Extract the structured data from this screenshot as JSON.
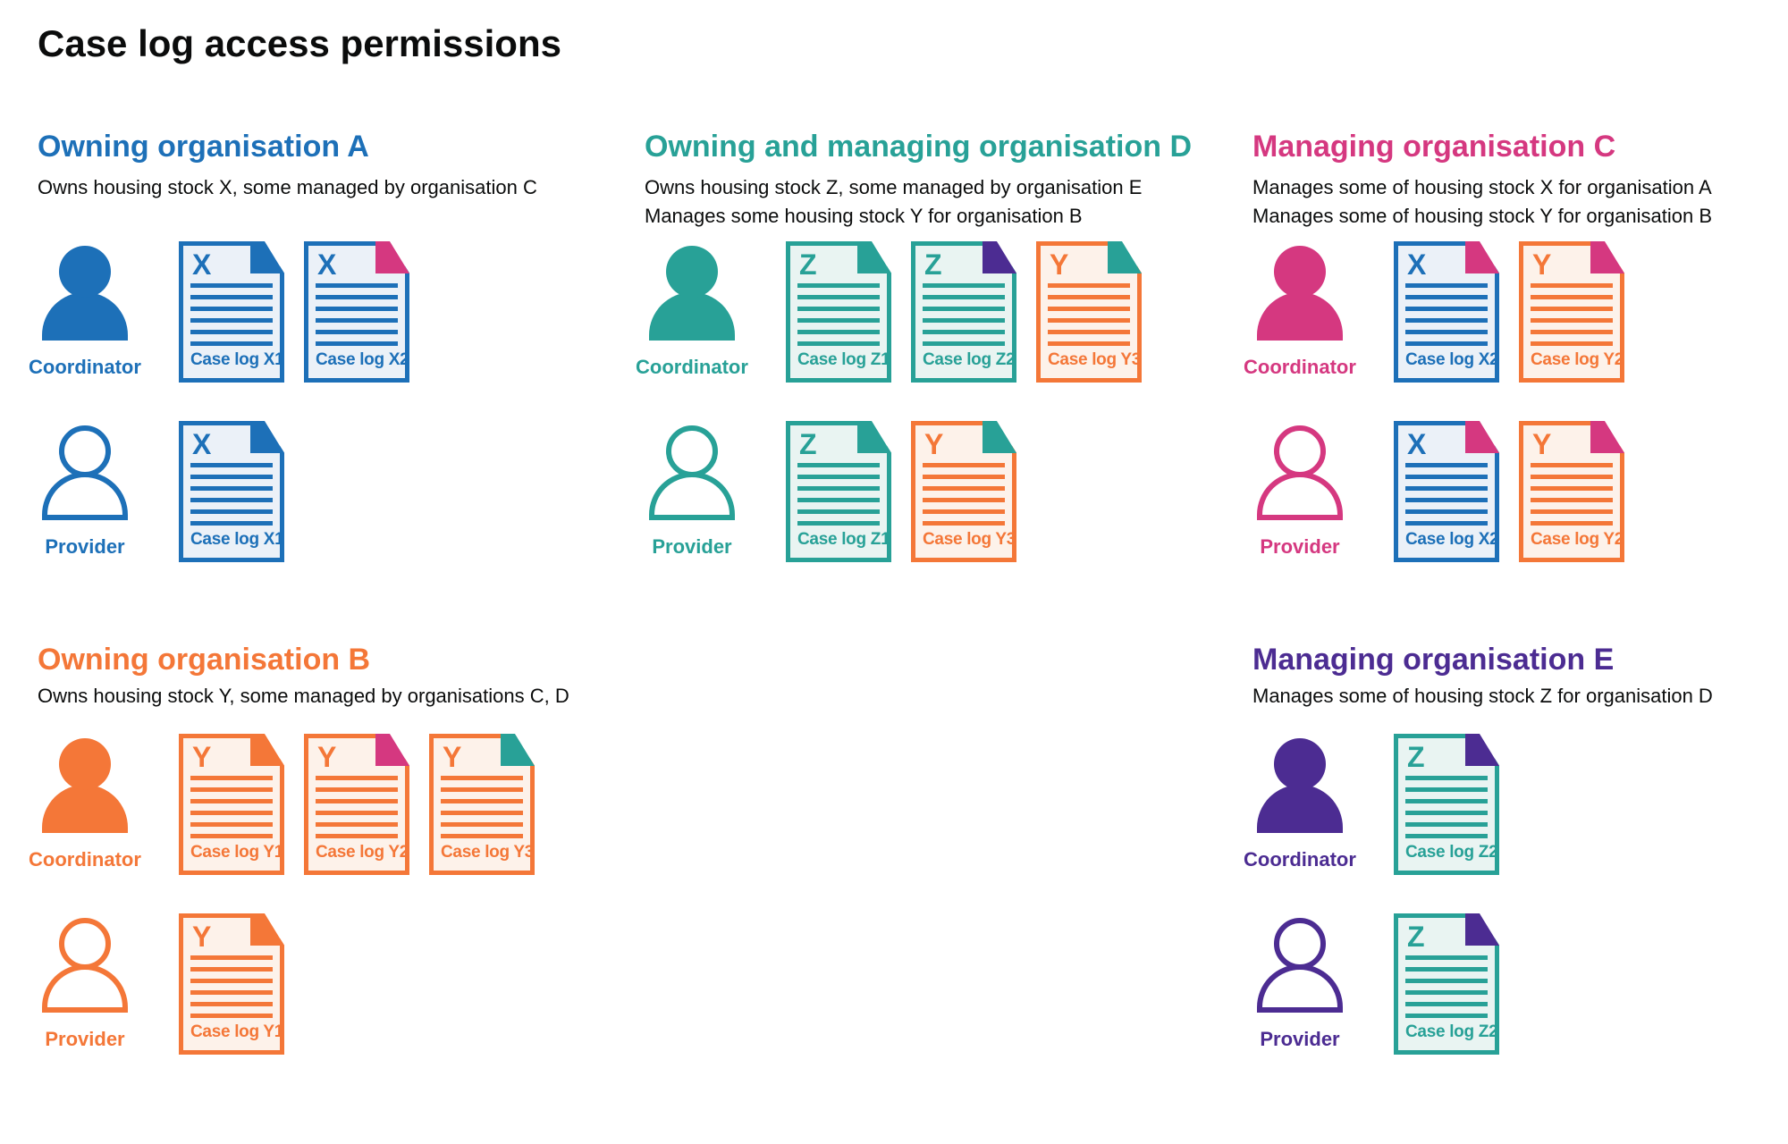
{
  "title": "Case log access permissions",
  "colors": {
    "text": "#0b0c0c",
    "blue": {
      "main": "#1d70b8",
      "light": "#ebf1f8"
    },
    "teal": {
      "main": "#28a197",
      "light": "#e9f4f2"
    },
    "orange": {
      "main": "#f47738",
      "light": "#fdf2ea"
    },
    "pink": {
      "main": "#d53880",
      "light": "#fbeaf2"
    },
    "purple": {
      "main": "#4c2c92",
      "light": "#ece8f4"
    }
  },
  "sections": [
    {
      "slot": "a",
      "row": 1,
      "color": "blue",
      "title": "Owning organisation A",
      "description_lines": [
        "Owns housing stock X, some managed by organisation C"
      ],
      "roles": [
        {
          "label": "Coordinator",
          "style": "filled",
          "documents": [
            {
              "letter": "X",
              "label": "Case log X1",
              "doc_color": "blue",
              "corner_color": "blue"
            },
            {
              "letter": "X",
              "label": "Case log X2",
              "doc_color": "blue",
              "corner_color": "pink"
            }
          ]
        },
        {
          "label": "Provider",
          "style": "outline",
          "documents": [
            {
              "letter": "X",
              "label": "Case log X1",
              "doc_color": "blue",
              "corner_color": "blue"
            }
          ]
        }
      ]
    },
    {
      "slot": "d",
      "row": 1,
      "color": "teal",
      "title": "Owning and managing organisation D",
      "description_lines": [
        "Owns housing stock Z, some managed by organisation E",
        "Manages some housing stock Y for organisation B"
      ],
      "roles": [
        {
          "label": "Coordinator",
          "style": "filled",
          "documents": [
            {
              "letter": "Z",
              "label": "Case log Z1",
              "doc_color": "teal",
              "corner_color": "teal"
            },
            {
              "letter": "Z",
              "label": "Case log Z2",
              "doc_color": "teal",
              "corner_color": "purple"
            },
            {
              "letter": "Y",
              "label": "Case log Y3",
              "doc_color": "orange",
              "corner_color": "teal"
            }
          ]
        },
        {
          "label": "Provider",
          "style": "outline",
          "documents": [
            {
              "letter": "Z",
              "label": "Case log Z1",
              "doc_color": "teal",
              "corner_color": "teal"
            },
            {
              "letter": "Y",
              "label": "Case log Y3",
              "doc_color": "orange",
              "corner_color": "teal"
            }
          ]
        }
      ]
    },
    {
      "slot": "c",
      "row": 1,
      "color": "pink",
      "title": "Managing organisation C",
      "description_lines": [
        "Manages some of housing stock X for organisation A",
        "Manages some of housing stock Y for organisation B"
      ],
      "roles": [
        {
          "label": "Coordinator",
          "style": "filled",
          "documents": [
            {
              "letter": "X",
              "label": "Case log X2",
              "doc_color": "blue",
              "corner_color": "pink"
            },
            {
              "letter": "Y",
              "label": "Case log Y2",
              "doc_color": "orange",
              "corner_color": "pink"
            }
          ]
        },
        {
          "label": "Provider",
          "style": "outline",
          "documents": [
            {
              "letter": "X",
              "label": "Case log X2",
              "doc_color": "blue",
              "corner_color": "pink"
            },
            {
              "letter": "Y",
              "label": "Case log Y2",
              "doc_color": "orange",
              "corner_color": "pink"
            }
          ]
        }
      ]
    },
    {
      "slot": "b",
      "row": 2,
      "color": "orange",
      "title": "Owning organisation B",
      "description_lines": [
        "Owns housing stock Y, some managed by organisations C, D"
      ],
      "roles": [
        {
          "label": "Coordinator",
          "style": "filled",
          "documents": [
            {
              "letter": "Y",
              "label": "Case log Y1",
              "doc_color": "orange",
              "corner_color": "orange"
            },
            {
              "letter": "Y",
              "label": "Case log Y2",
              "doc_color": "orange",
              "corner_color": "pink"
            },
            {
              "letter": "Y",
              "label": "Case log Y3",
              "doc_color": "orange",
              "corner_color": "teal"
            }
          ]
        },
        {
          "label": "Provider",
          "style": "outline",
          "documents": [
            {
              "letter": "Y",
              "label": "Case log Y1",
              "doc_color": "orange",
              "corner_color": "orange"
            }
          ]
        }
      ]
    },
    {
      "slot": "e",
      "row": 2,
      "color": "purple",
      "title": "Managing organisation E",
      "description_lines": [
        "Manages some of housing stock Z for organisation D"
      ],
      "roles": [
        {
          "label": "Coordinator",
          "style": "filled",
          "documents": [
            {
              "letter": "Z",
              "label": "Case log Z2",
              "doc_color": "teal",
              "corner_color": "purple"
            }
          ]
        },
        {
          "label": "Provider",
          "style": "outline",
          "documents": [
            {
              "letter": "Z",
              "label": "Case log Z2",
              "doc_color": "teal",
              "corner_color": "purple"
            }
          ]
        }
      ]
    }
  ]
}
